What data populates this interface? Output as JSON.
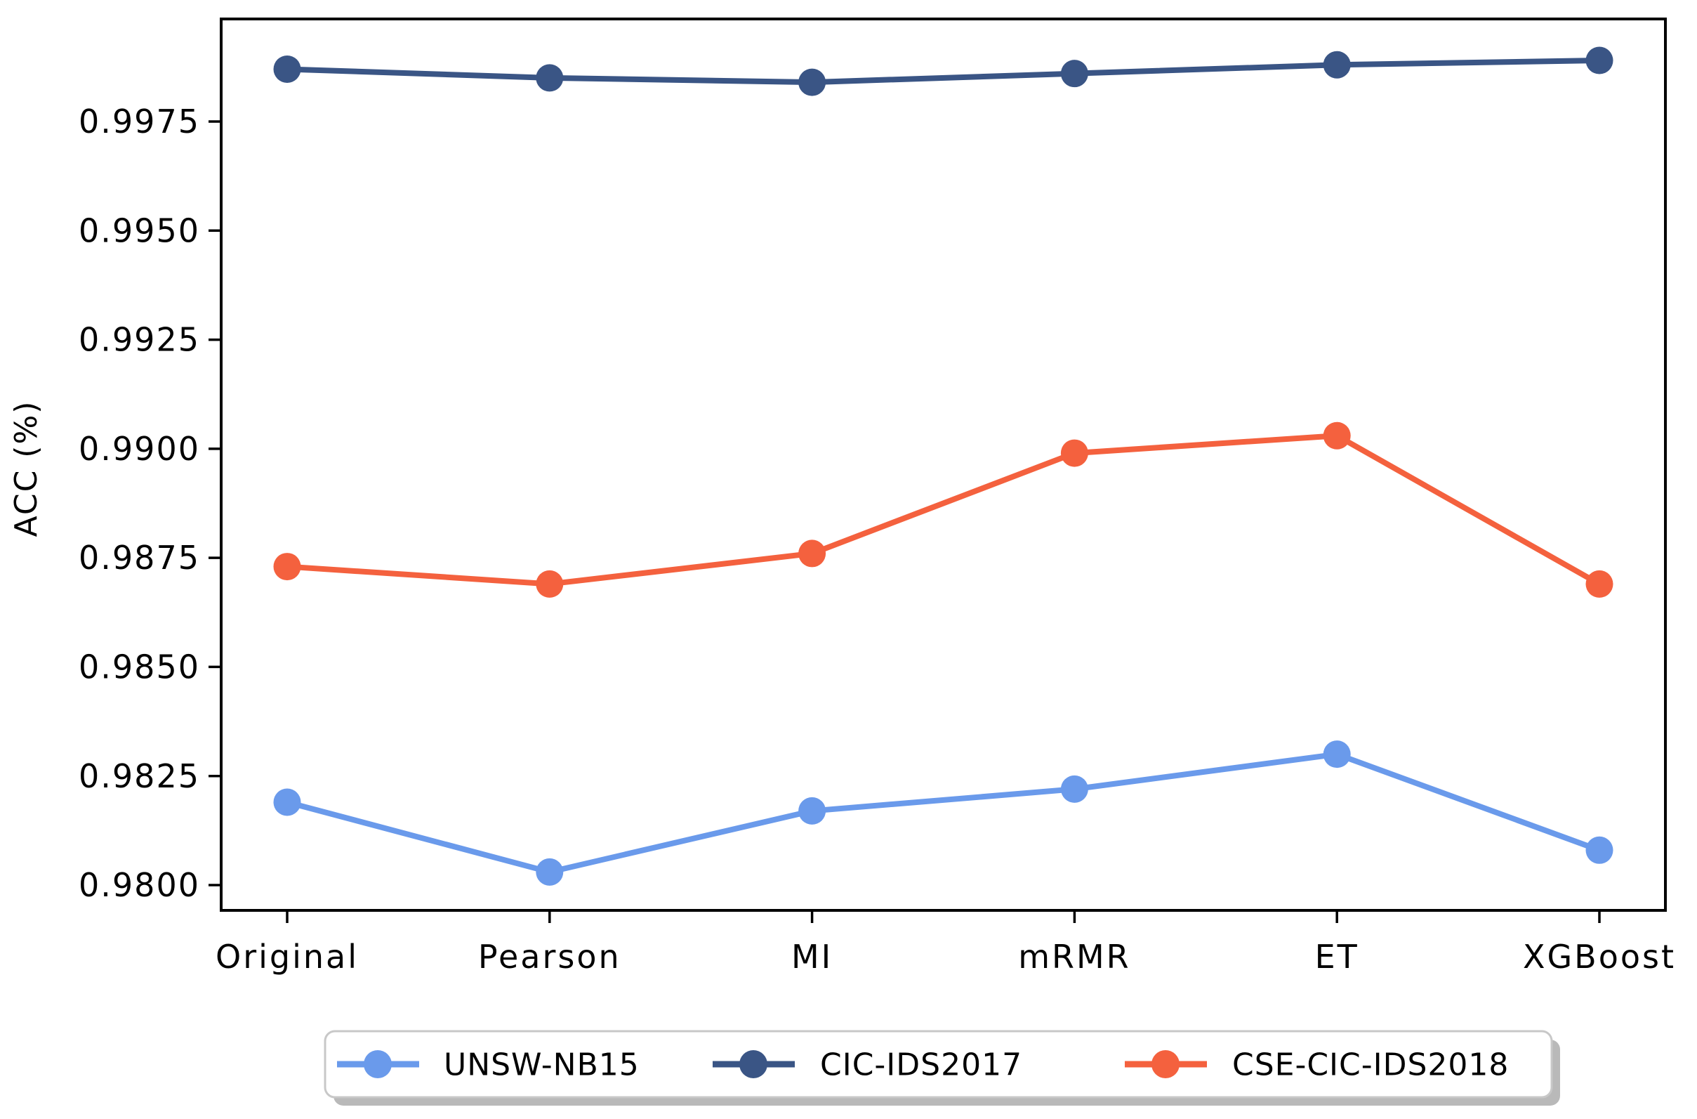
{
  "figure": {
    "background": "#ffffff",
    "axis_color": "#000000",
    "legend_border_color": "#c8c8c8",
    "legend_shadow_color": "#b9b9b9",
    "legend_fill": "#ffffff"
  },
  "chart_data": {
    "type": "line",
    "title": "",
    "xlabel": "",
    "ylabel": "ACC (%)",
    "categories": [
      "Original",
      "Pearson",
      "MI",
      "mRMR",
      "ET",
      "XGBoost"
    ],
    "yticks": [
      0.98,
      0.9825,
      0.985,
      0.9875,
      0.99,
      0.9925,
      0.995,
      0.9975
    ],
    "ylim": [
      0.9794,
      0.9999
    ],
    "grid": false,
    "marker": "circle",
    "legend_position": "bottom-outside",
    "series": [
      {
        "name": "UNSW-NB15",
        "color": "#6a9aeb",
        "values": [
          0.9819,
          0.9803,
          0.9817,
          0.9822,
          0.983,
          0.9808
        ]
      },
      {
        "name": "CIC-IDS2017",
        "color": "#3a5585",
        "values": [
          0.9987,
          0.9985,
          0.9984,
          0.9986,
          0.9988,
          0.9989
        ]
      },
      {
        "name": "CSE-CIC-IDS2018",
        "color": "#f4613e",
        "values": [
          0.9873,
          0.9869,
          0.9876,
          0.9899,
          0.9903,
          0.9869
        ]
      }
    ]
  }
}
